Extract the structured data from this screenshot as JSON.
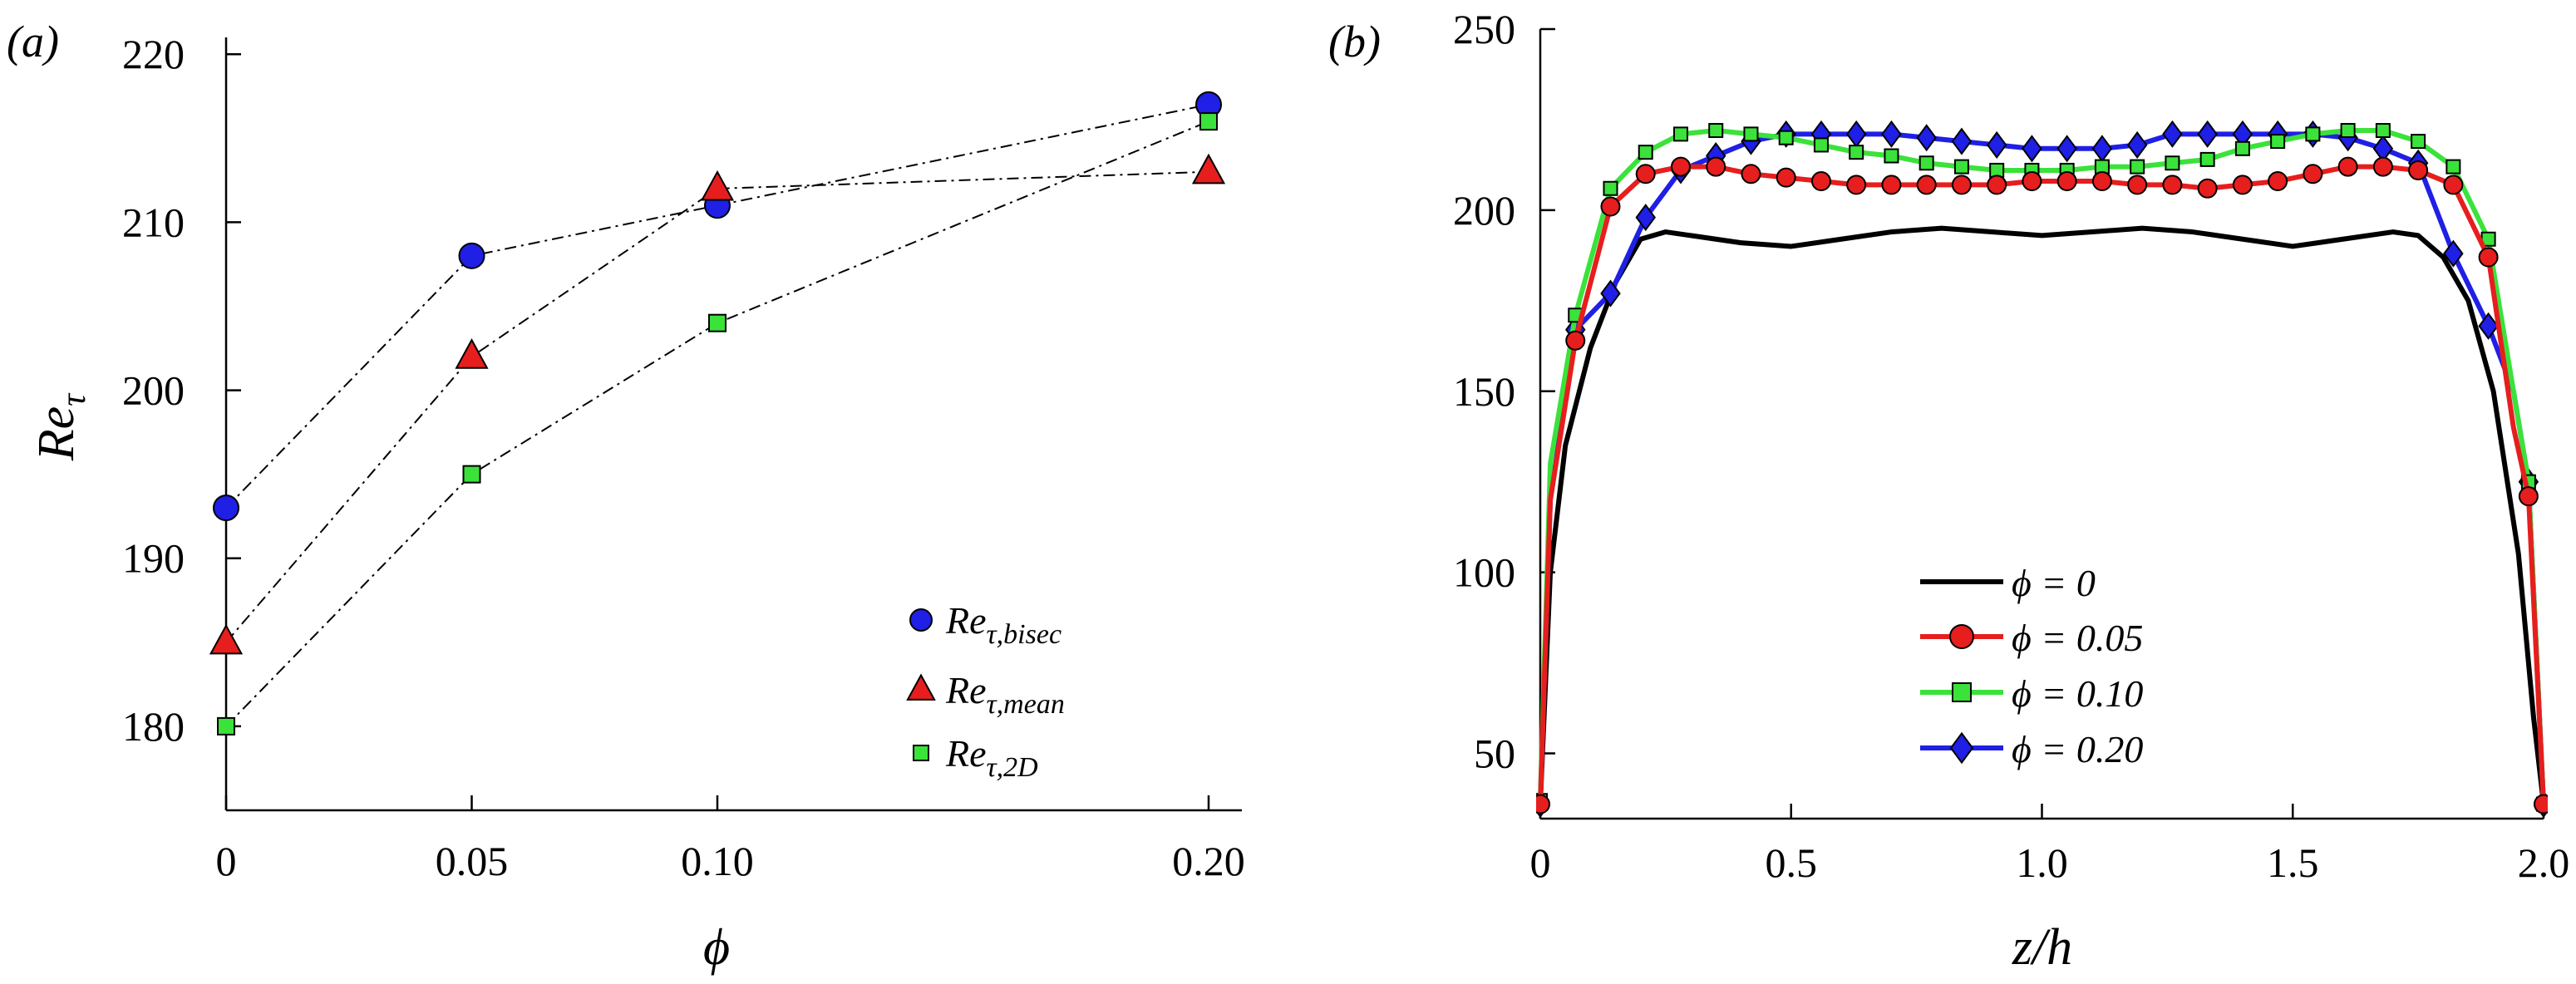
{
  "chart_data": [
    {
      "panel_label": "(a)",
      "type": "line",
      "xlabel": "ϕ",
      "ylabel": "Reτ",
      "ylabel_base": "Re",
      "ylabel_sub": "τ",
      "x": [
        0,
        0.05,
        0.1,
        0.2
      ],
      "xticks": [
        0,
        0.05,
        0.1,
        0.2
      ],
      "xtick_labels": [
        "0",
        "0.05",
        "0.10",
        "0.20"
      ],
      "xlim": [
        0,
        0.2
      ],
      "yticks": [
        180,
        190,
        200,
        210,
        220
      ],
      "ytick_labels": [
        "180",
        "190",
        "200",
        "210",
        "220"
      ],
      "ylim": [
        175,
        221
      ],
      "line_style": "dash-dot",
      "legend_position": "lower-right",
      "series": [
        {
          "name": "Reτ,bisec",
          "label_base": "Re",
          "label_sub": "τ,bisec",
          "marker": "circle",
          "color": "#1f1fe6",
          "values": [
            193,
            208,
            211,
            217
          ]
        },
        {
          "name": "Reτ,mean",
          "label_base": "Re",
          "label_sub": "τ,mean",
          "marker": "triangle",
          "color": "#e61e1e",
          "values": [
            185,
            202,
            212,
            213
          ]
        },
        {
          "name": "Reτ,2D",
          "label_base": "Re",
          "label_sub": "τ,2D",
          "marker": "square",
          "color": "#3ae23a",
          "values": [
            180,
            195,
            204,
            216
          ]
        }
      ]
    },
    {
      "panel_label": "(b)",
      "type": "line",
      "xlabel": "z/h",
      "ylabel": "",
      "xticks": [
        0,
        0.5,
        1.0,
        1.5,
        2.0
      ],
      "xtick_labels": [
        "0",
        "0.5",
        "1.0",
        "1.5",
        "2.0"
      ],
      "xlim": [
        0,
        2.0
      ],
      "yticks": [
        50,
        100,
        150,
        200,
        250
      ],
      "ytick_labels": [
        "50",
        "100",
        "150",
        "200",
        "250"
      ],
      "ylim": [
        32,
        250
      ],
      "legend_position": "center-bottom",
      "series": [
        {
          "name": "ϕ = 0",
          "marker": "none",
          "color": "#000000",
          "x": [
            0,
            0.02,
            0.05,
            0.1,
            0.15,
            0.2,
            0.25,
            0.3,
            0.4,
            0.5,
            0.6,
            0.7,
            0.8,
            0.9,
            1.0,
            1.1,
            1.2,
            1.3,
            1.4,
            1.5,
            1.6,
            1.7,
            1.75,
            1.8,
            1.85,
            1.9,
            1.95,
            1.98,
            2.0
          ],
          "values": [
            36,
            100,
            135,
            162,
            180,
            192,
            194,
            193,
            191,
            190,
            192,
            194,
            195,
            194,
            193,
            194,
            195,
            194,
            192,
            190,
            192,
            194,
            193,
            187,
            175,
            150,
            105,
            60,
            36
          ]
        },
        {
          "name": "ϕ = 0.05",
          "marker": "circle",
          "color": "#e61e1e",
          "x": [
            0,
            0.02,
            0.07,
            0.14,
            0.21,
            0.28,
            0.35,
            0.42,
            0.49,
            0.56,
            0.63,
            0.7,
            0.77,
            0.84,
            0.91,
            0.98,
            1.05,
            1.12,
            1.19,
            1.26,
            1.33,
            1.4,
            1.47,
            1.54,
            1.61,
            1.68,
            1.75,
            1.82,
            1.89,
            1.94,
            1.97,
            2.0
          ],
          "values": [
            36,
            120,
            164,
            201,
            210,
            212,
            212,
            210,
            209,
            208,
            207,
            207,
            207,
            207,
            207,
            208,
            208,
            208,
            207,
            207,
            206,
            207,
            208,
            210,
            212,
            212,
            211,
            207,
            187,
            140,
            121,
            36
          ]
        },
        {
          "name": "ϕ = 0.10",
          "marker": "square",
          "color": "#3ae23a",
          "x": [
            0,
            0.02,
            0.07,
            0.14,
            0.21,
            0.28,
            0.35,
            0.42,
            0.49,
            0.56,
            0.63,
            0.7,
            0.77,
            0.84,
            0.91,
            0.98,
            1.05,
            1.12,
            1.19,
            1.26,
            1.33,
            1.4,
            1.47,
            1.54,
            1.61,
            1.68,
            1.75,
            1.82,
            1.89,
            1.94,
            1.97,
            2.0
          ],
          "values": [
            37,
            130,
            171,
            206,
            216,
            221,
            222,
            221,
            220,
            218,
            216,
            215,
            213,
            212,
            211,
            211,
            211,
            212,
            212,
            213,
            214,
            217,
            219,
            221,
            222,
            222,
            219,
            212,
            192,
            150,
            125,
            36
          ]
        },
        {
          "name": "ϕ = 0.20",
          "marker": "diamond",
          "color": "#1f1fe6",
          "x": [
            0,
            0.02,
            0.07,
            0.14,
            0.21,
            0.28,
            0.35,
            0.42,
            0.49,
            0.56,
            0.63,
            0.7,
            0.77,
            0.84,
            0.91,
            0.98,
            1.05,
            1.12,
            1.19,
            1.26,
            1.33,
            1.4,
            1.47,
            1.54,
            1.61,
            1.68,
            1.75,
            1.82,
            1.89,
            1.94,
            1.97,
            2.0
          ],
          "values": [
            36,
            120,
            167,
            177,
            198,
            211,
            215,
            219,
            221,
            221,
            221,
            221,
            220,
            219,
            218,
            217,
            217,
            217,
            218,
            221,
            221,
            221,
            221,
            221,
            220,
            217,
            213,
            188,
            168,
            150,
            125,
            36
          ]
        }
      ]
    }
  ]
}
